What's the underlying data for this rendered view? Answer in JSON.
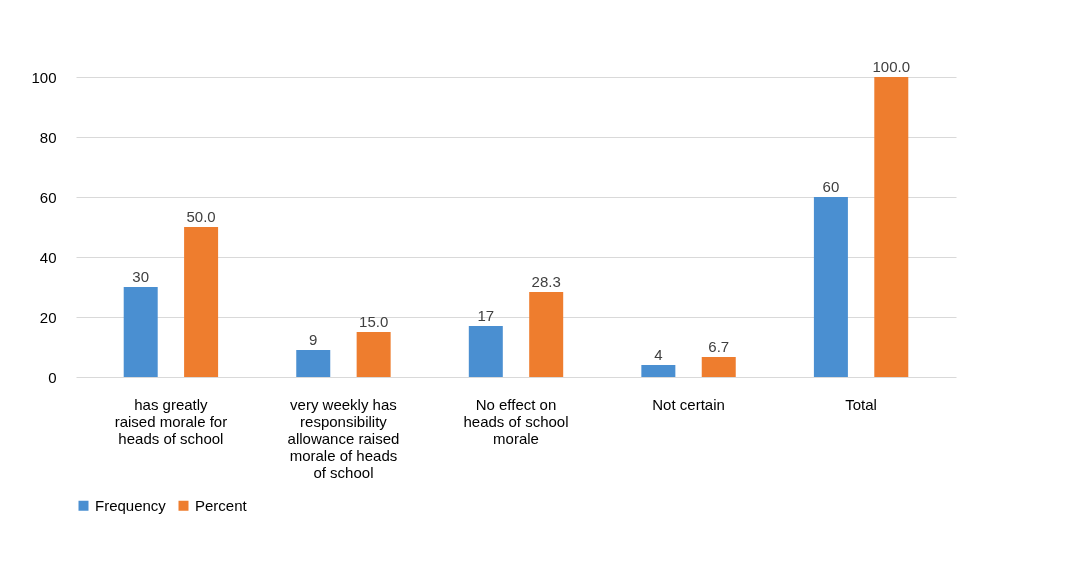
{
  "chart_data": {
    "type": "bar",
    "categories": [
      "has greatly raised morale for heads of school",
      "very weekly has responsibility allowance raised morale of heads of school",
      "No effect on heads of school morale",
      "Not certain",
      "Total"
    ],
    "series": [
      {
        "name": "Frequency",
        "color": "#4a8fd1",
        "values": [
          30,
          9,
          17,
          4,
          60
        ]
      },
      {
        "name": "Percent",
        "color": "#ee7d2e",
        "values": [
          50.0,
          15.0,
          28.3,
          6.7,
          100.0
        ],
        "value_labels": [
          "50.0",
          "15.0",
          "28.3",
          "6.7",
          "100.0"
        ]
      }
    ],
    "ylim": [
      0,
      100
    ],
    "yticks": [
      0,
      20,
      40,
      60,
      80,
      100
    ],
    "grid": "y",
    "legend": "bottom",
    "data_labels": true
  }
}
